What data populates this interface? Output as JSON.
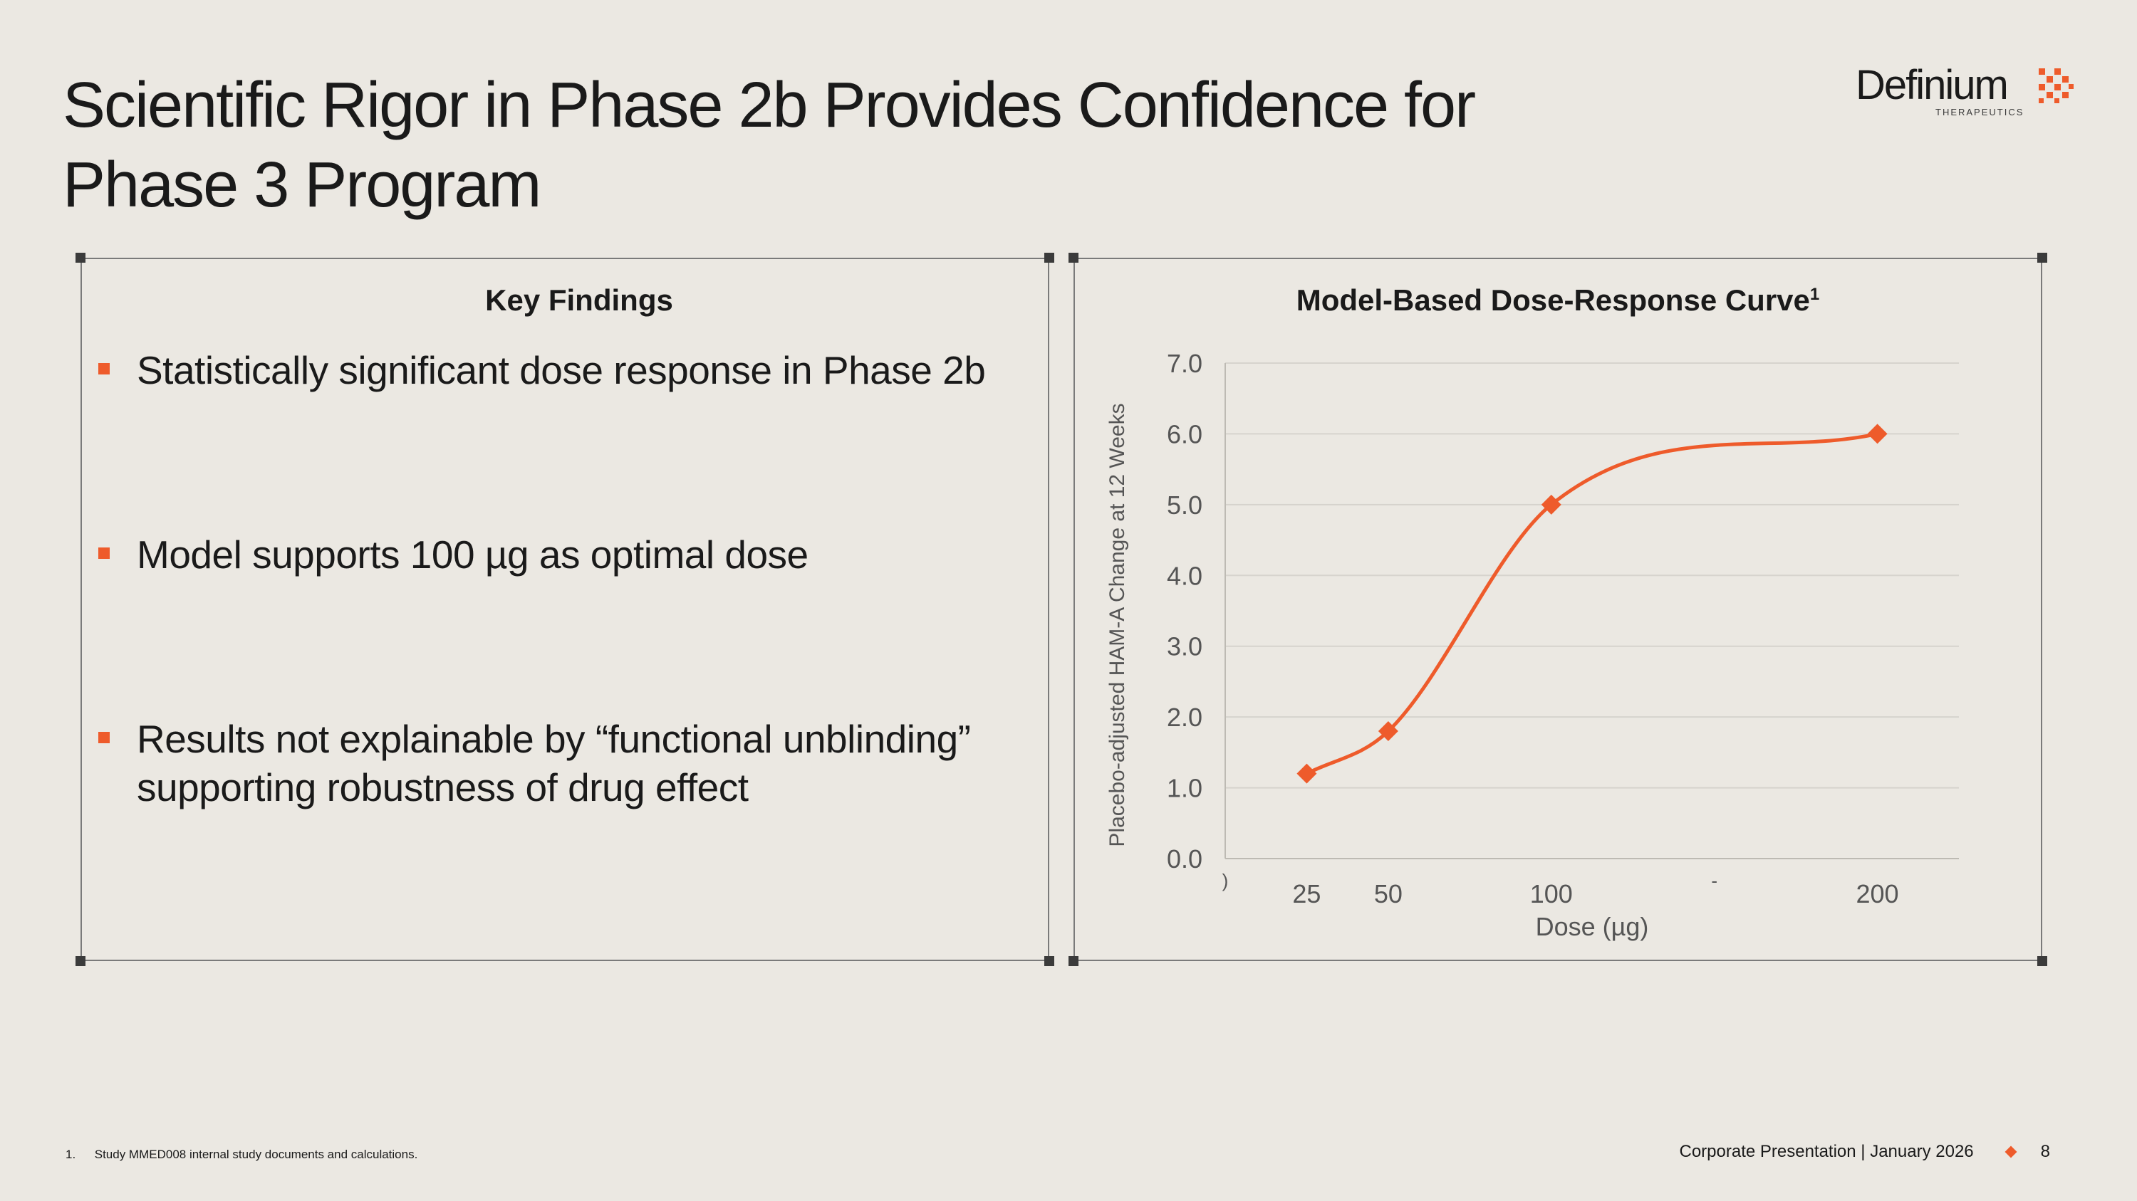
{
  "slide": {
    "title_line1": "Scientific Rigor in Phase 2b Provides Confidence for",
    "title_line2": "Phase 3 Program"
  },
  "logo": {
    "name": "Definium",
    "subtitle": "THERAPEUTICS",
    "brand_color": "#ee5b2b"
  },
  "key_findings": {
    "heading": "Key Findings",
    "items": [
      {
        "text": "Statistically significant dose response in Phase 2b"
      },
      {
        "text": "Model supports 100 µg as optimal dose"
      },
      {
        "line1": "Results not explainable by “functional unblinding”",
        "line2": "supporting robustness of drug effect"
      }
    ]
  },
  "chart_data": {
    "type": "line",
    "title": "Model-Based Dose-Response Curve",
    "title_superscript": "1",
    "xlabel": "Dose (µg)",
    "ylabel": "Placebo-adjusted HAM-A Change at 12 Weeks",
    "x_tick_labels": [
      ")",
      "25",
      "50",
      "100",
      "-",
      "200"
    ],
    "x_tick_positions": [
      0,
      25,
      50,
      100,
      150,
      200
    ],
    "xlim": [
      0,
      225
    ],
    "ylim": [
      0,
      7
    ],
    "y_ticks": [
      "0.0",
      "1.0",
      "2.0",
      "3.0",
      "4.0",
      "5.0",
      "6.0",
      "7.0"
    ],
    "grid": true,
    "series": [
      {
        "name": "Model-based dose response",
        "color": "#ee5b2b",
        "marker": "diamond",
        "x": [
          25,
          50,
          100,
          200
        ],
        "values": [
          1.2,
          1.8,
          5.0,
          6.0
        ]
      }
    ]
  },
  "footnote": {
    "number": "1.",
    "text": "Study MMED008 internal study documents and calculations."
  },
  "footer": {
    "text": "Corporate Presentation | January 2026",
    "page_number": "8"
  }
}
